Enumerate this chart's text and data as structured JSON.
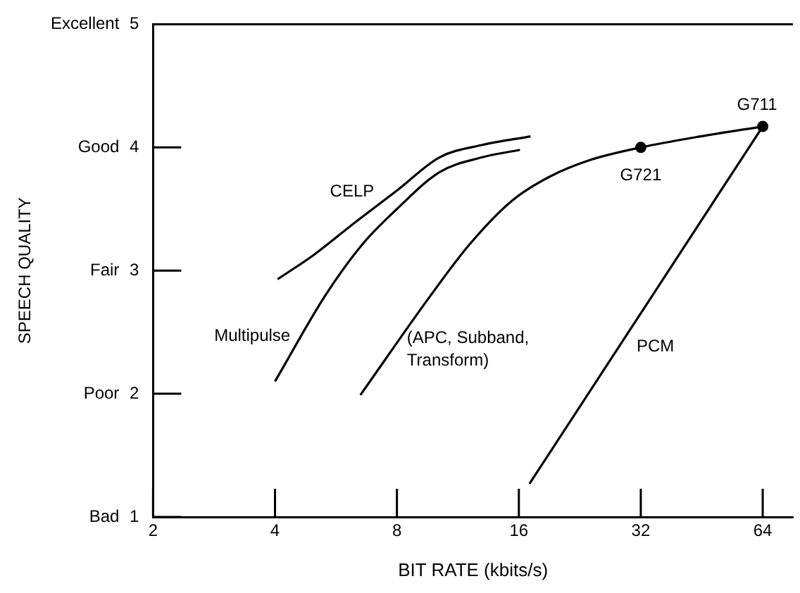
{
  "chart_data": {
    "type": "line",
    "xlabel": "BIT RATE (kbits/s)",
    "log": "x",
    "xlim": [
      2,
      76
    ],
    "xticks": [
      2,
      4,
      8,
      16,
      32,
      64
    ],
    "ylim": [
      1,
      5
    ],
    "yticks": [
      1,
      2,
      3,
      4,
      5
    ],
    "grid": false,
    "legend": false,
    "marker": "none",
    "line_style": "solid",
    "series": [
      {
        "name": "CELP",
        "color": "#000000",
        "x": [
          4.06,
          5.0,
          6.3,
          8.0,
          10.2,
          13.0,
          17.1
        ],
        "values": [
          2.93,
          3.13,
          3.39,
          3.65,
          3.92,
          4.02,
          4.09
        ]
      },
      {
        "name": "Multipulse",
        "color": "#000000",
        "x": [
          4.0,
          5.33,
          6.6,
          8.0,
          10.2,
          13.0,
          16.1
        ],
        "values": [
          2.1,
          2.8,
          3.22,
          3.5,
          3.8,
          3.92,
          3.98
        ]
      },
      {
        "name": "(APC, Subband, Transform)",
        "color": "#000000",
        "x": [
          6.5,
          9.7,
          12.0,
          15.3,
          19.0,
          24.1,
          32,
          45,
          64
        ],
        "values": [
          1.99,
          2.8,
          3.2,
          3.56,
          3.76,
          3.9,
          4.0,
          4.09,
          4.17
        ]
      },
      {
        "name": "PCM",
        "color": "#000000",
        "x": [
          17,
          64
        ],
        "values": [
          1.27,
          4.17
        ]
      },
      {
        "type": "scatter",
        "color": "#000000",
        "marker": "circle",
        "x": [
          32,
          64
        ],
        "values": [
          4.0,
          4.17
        ]
      }
    ],
    "annotations": [
      "Bad",
      "Poor",
      "Fair",
      "Good",
      "Excellent",
      "SPEECH QUALITY",
      {
        "text": "G721",
        "x": 32,
        "y": 4.0
      },
      {
        "text": "G711",
        "x": 64,
        "y": 4.17
      }
    ]
  }
}
